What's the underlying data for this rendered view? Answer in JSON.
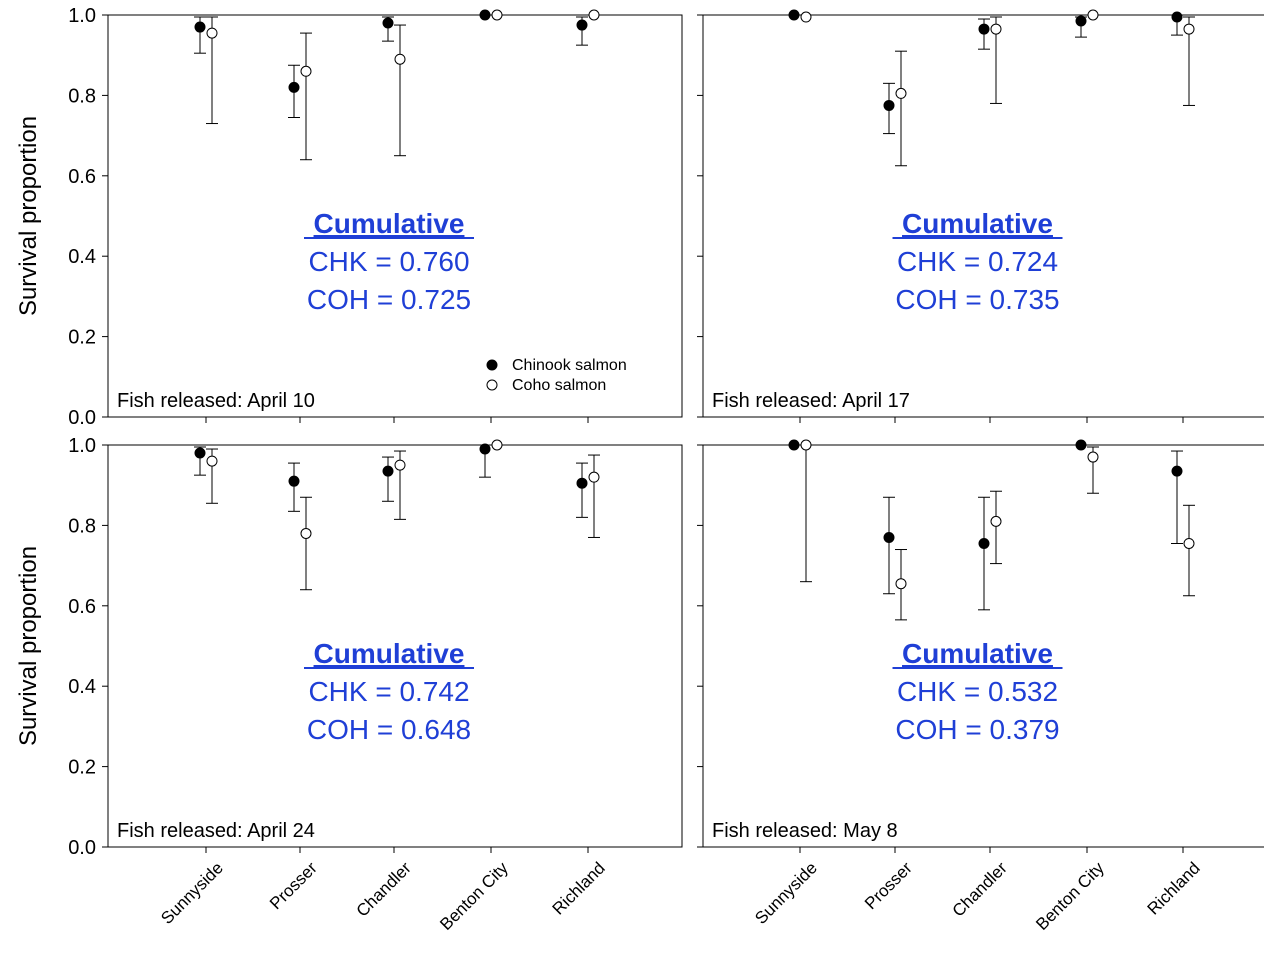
{
  "chart_data": {
    "type": "scatter",
    "ylabel": "Survival proportion",
    "ylim": [
      0.0,
      1.0
    ],
    "yticks": [
      "0.0",
      "0.2",
      "0.4",
      "0.6",
      "0.8",
      "1.0"
    ],
    "categories": [
      "Sunnyside",
      "Prosser",
      "Chandler",
      "Benton City",
      "Richland"
    ],
    "legend": [
      "Chinook salmon",
      "Coho salmon"
    ],
    "colors": {
      "chinook": "#000000",
      "coho": "#ffffff",
      "annotation": "#1f3fd6"
    },
    "panels": [
      {
        "label": "Fish released: April 10",
        "show_legend": true,
        "annotation": {
          "title": "Cumulative",
          "line1": "CHK = 0.760",
          "line2": "COH = 0.725"
        },
        "chinook": {
          "values": [
            0.97,
            0.82,
            0.98,
            1.0,
            0.975
          ],
          "lower": [
            0.905,
            0.745,
            0.935,
            1.0,
            0.925
          ],
          "upper": [
            0.995,
            0.875,
            0.995,
            1.0,
            0.995
          ]
        },
        "coho": {
          "values": [
            0.955,
            0.86,
            0.89,
            1.0,
            1.0
          ],
          "lower": [
            0.73,
            0.64,
            0.65,
            1.0,
            1.0
          ],
          "upper": [
            0.995,
            0.955,
            0.975,
            1.0,
            1.0
          ]
        }
      },
      {
        "label": "Fish released: April 17",
        "show_legend": false,
        "annotation": {
          "title": "Cumulative",
          "line1": "CHK = 0.724",
          "line2": "COH = 0.735"
        },
        "chinook": {
          "values": [
            1.0,
            0.775,
            0.965,
            0.985,
            0.995
          ],
          "lower": [
            1.0,
            0.705,
            0.915,
            0.945,
            0.95
          ],
          "upper": [
            1.0,
            0.83,
            0.99,
            0.995,
            1.0
          ]
        },
        "coho": {
          "values": [
            0.995,
            0.805,
            0.965,
            1.0,
            0.965
          ],
          "lower": [
            0.995,
            0.625,
            0.78,
            1.0,
            0.775
          ],
          "upper": [
            0.995,
            0.91,
            0.995,
            1.0,
            0.995
          ]
        }
      },
      {
        "label": "Fish released: April 24",
        "show_legend": false,
        "annotation": {
          "title": "Cumulative",
          "line1": "CHK = 0.742",
          "line2": "COH = 0.648"
        },
        "chinook": {
          "values": [
            0.98,
            0.91,
            0.935,
            0.99,
            0.905
          ],
          "lower": [
            0.925,
            0.835,
            0.86,
            0.92,
            0.82
          ],
          "upper": [
            0.995,
            0.955,
            0.97,
            1.0,
            0.955
          ]
        },
        "coho": {
          "values": [
            0.96,
            0.78,
            0.95,
            1.0,
            0.92
          ],
          "lower": [
            0.855,
            0.64,
            0.815,
            1.0,
            0.77
          ],
          "upper": [
            0.99,
            0.87,
            0.985,
            1.0,
            0.975
          ]
        }
      },
      {
        "label": "Fish released: May 8",
        "show_legend": false,
        "annotation": {
          "title": "Cumulative",
          "line1": "CHK = 0.532",
          "line2": "COH = 0.379"
        },
        "chinook": {
          "values": [
            1.0,
            0.77,
            0.755,
            1.0,
            0.935
          ],
          "lower": [
            1.0,
            0.63,
            0.59,
            1.0,
            0.755
          ],
          "upper": [
            1.0,
            0.87,
            0.87,
            1.0,
            0.985
          ]
        },
        "coho": {
          "values": [
            1.0,
            0.655,
            0.81,
            0.97,
            0.755
          ],
          "lower": [
            0.66,
            0.565,
            0.705,
            0.88,
            0.625
          ],
          "upper": [
            1.0,
            0.74,
            0.885,
            0.995,
            0.85
          ]
        }
      }
    ]
  }
}
